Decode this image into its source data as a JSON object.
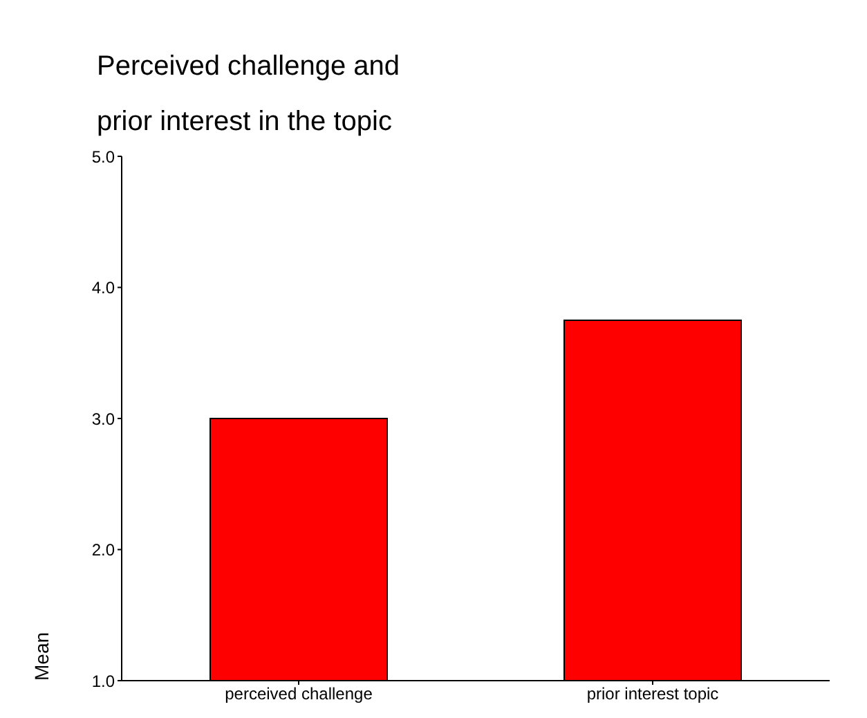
{
  "chart_data": {
    "type": "bar",
    "title": "Perceived challenge and prior interest in the topic",
    "ylabel": "Mean",
    "categories": [
      "perceived challenge",
      "prior interest topic"
    ],
    "values": [
      3.0,
      3.75
    ],
    "color": "#ff0000",
    "ylim": [
      1,
      5
    ],
    "yticks": [
      {
        "value": 1,
        "label": "1.0"
      },
      {
        "value": 2,
        "label": "2.0"
      },
      {
        "value": 3,
        "label": "3.0"
      },
      {
        "value": 4,
        "label": "4.0"
      },
      {
        "value": 5,
        "label": "5.0"
      }
    ],
    "grid": false,
    "legend": false
  }
}
